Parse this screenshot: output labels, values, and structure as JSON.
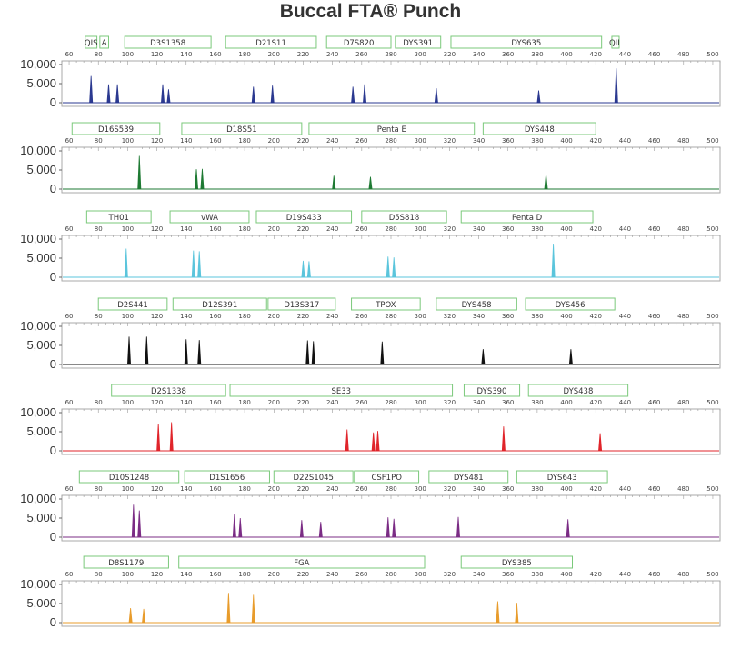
{
  "title": "Buccal FTA® Punch",
  "chart_data": [
    {
      "type": "line",
      "color": "#2b3990",
      "markers": [
        {
          "name": "QIS",
          "start": 71,
          "end": 79
        },
        {
          "name": "A",
          "start": 81,
          "end": 87
        },
        {
          "name": "D3S1358",
          "start": 98,
          "end": 157
        },
        {
          "name": "D21S11",
          "start": 167,
          "end": 229
        },
        {
          "name": "D7S820",
          "start": 236,
          "end": 280
        },
        {
          "name": "DYS391",
          "start": 283,
          "end": 314
        },
        {
          "name": "DYS635",
          "start": 321,
          "end": 424
        },
        {
          "name": "QIL",
          "start": 431,
          "end": 436
        }
      ],
      "ylim": [
        0,
        10000
      ],
      "yticks": [
        "10,000",
        "5,000",
        "0"
      ],
      "peaks": [
        {
          "x": 75,
          "y": 7000
        },
        {
          "x": 87,
          "y": 4800
        },
        {
          "x": 93,
          "y": 4800
        },
        {
          "x": 124,
          "y": 4800
        },
        {
          "x": 128,
          "y": 3500
        },
        {
          "x": 186,
          "y": 4200
        },
        {
          "x": 199,
          "y": 4500
        },
        {
          "x": 254,
          "y": 4200
        },
        {
          "x": 262,
          "y": 4800
        },
        {
          "x": 311,
          "y": 3800
        },
        {
          "x": 381,
          "y": 3200
        },
        {
          "x": 434,
          "y": 9000
        }
      ]
    },
    {
      "type": "line",
      "color": "#1e7a33",
      "markers": [
        {
          "name": "D16S539",
          "start": 62,
          "end": 122
        },
        {
          "name": "D18S51",
          "start": 137,
          "end": 219
        },
        {
          "name": "Penta E",
          "start": 224,
          "end": 337
        },
        {
          "name": "DYS448",
          "start": 343,
          "end": 420
        }
      ],
      "ylim": [
        0,
        10000
      ],
      "yticks": [
        "10,000",
        "5,000",
        "0"
      ],
      "peaks": [
        {
          "x": 108,
          "y": 8700
        },
        {
          "x": 147,
          "y": 5200
        },
        {
          "x": 151,
          "y": 5300
        },
        {
          "x": 241,
          "y": 3500
        },
        {
          "x": 266,
          "y": 3200
        },
        {
          "x": 386,
          "y": 3800
        }
      ]
    },
    {
      "type": "line",
      "color": "#5bc5dc",
      "markers": [
        {
          "name": "TH01",
          "start": 72,
          "end": 116
        },
        {
          "name": "vWA",
          "start": 129,
          "end": 183
        },
        {
          "name": "D19S433",
          "start": 188,
          "end": 253
        },
        {
          "name": "D5S818",
          "start": 260,
          "end": 318
        },
        {
          "name": "Penta D",
          "start": 328,
          "end": 418
        }
      ],
      "ylim": [
        0,
        10000
      ],
      "yticks": [
        "10,000",
        "5,000",
        "0"
      ],
      "peaks": [
        {
          "x": 99,
          "y": 7500
        },
        {
          "x": 145,
          "y": 7000
        },
        {
          "x": 149,
          "y": 6800
        },
        {
          "x": 220,
          "y": 4300
        },
        {
          "x": 224,
          "y": 4200
        },
        {
          "x": 278,
          "y": 5400
        },
        {
          "x": 282,
          "y": 5200
        },
        {
          "x": 391,
          "y": 8800
        }
      ]
    },
    {
      "type": "line",
      "color": "#111111",
      "markers": [
        {
          "name": "D2S441",
          "start": 80,
          "end": 127
        },
        {
          "name": "D12S391",
          "start": 131,
          "end": 195
        },
        {
          "name": "D13S317",
          "start": 196,
          "end": 242
        },
        {
          "name": "TPOX",
          "start": 253,
          "end": 300
        },
        {
          "name": "DYS458",
          "start": 311,
          "end": 366
        },
        {
          "name": "DYS456",
          "start": 372,
          "end": 433
        }
      ],
      "ylim": [
        0,
        10000
      ],
      "yticks": [
        "10,000",
        "5,000",
        "0"
      ],
      "peaks": [
        {
          "x": 101,
          "y": 7300
        },
        {
          "x": 113,
          "y": 7300
        },
        {
          "x": 140,
          "y": 6600
        },
        {
          "x": 149,
          "y": 6400
        },
        {
          "x": 223,
          "y": 6300
        },
        {
          "x": 227,
          "y": 6100
        },
        {
          "x": 274,
          "y": 6000
        },
        {
          "x": 343,
          "y": 4000
        },
        {
          "x": 403,
          "y": 4000
        }
      ]
    },
    {
      "type": "line",
      "color": "#e0252b",
      "markers": [
        {
          "name": "D2S1338",
          "start": 89,
          "end": 167
        },
        {
          "name": "SE33",
          "start": 170,
          "end": 322
        },
        {
          "name": "DYS390",
          "start": 330,
          "end": 368
        },
        {
          "name": "DYS438",
          "start": 374,
          "end": 442
        }
      ],
      "ylim": [
        0,
        10000
      ],
      "yticks": [
        "10,000",
        "5,000",
        "0"
      ],
      "peaks": [
        {
          "x": 121,
          "y": 7100
        },
        {
          "x": 130,
          "y": 7500
        },
        {
          "x": 250,
          "y": 5600
        },
        {
          "x": 268,
          "y": 4800
        },
        {
          "x": 271,
          "y": 5200
        },
        {
          "x": 357,
          "y": 6400
        },
        {
          "x": 423,
          "y": 4600
        }
      ]
    },
    {
      "type": "line",
      "color": "#7b2c85",
      "markers": [
        {
          "name": "D10S1248",
          "start": 67,
          "end": 135
        },
        {
          "name": "D1S1656",
          "start": 139,
          "end": 197
        },
        {
          "name": "D22S1045",
          "start": 200,
          "end": 254
        },
        {
          "name": "CSF1PO",
          "start": 255,
          "end": 299
        },
        {
          "name": "DYS481",
          "start": 306,
          "end": 360
        },
        {
          "name": "DYS643",
          "start": 366,
          "end": 428
        }
      ],
      "ylim": [
        0,
        10000
      ],
      "yticks": [
        "10,000",
        "5,000",
        "0"
      ],
      "peaks": [
        {
          "x": 104,
          "y": 8500
        },
        {
          "x": 108,
          "y": 7000
        },
        {
          "x": 173,
          "y": 6000
        },
        {
          "x": 177,
          "y": 5000
        },
        {
          "x": 219,
          "y": 4500
        },
        {
          "x": 232,
          "y": 4000
        },
        {
          "x": 278,
          "y": 5200
        },
        {
          "x": 282,
          "y": 4800
        },
        {
          "x": 326,
          "y": 5300
        },
        {
          "x": 401,
          "y": 4700
        }
      ]
    },
    {
      "type": "line",
      "color": "#e89c2c",
      "markers": [
        {
          "name": "D8S1179",
          "start": 70,
          "end": 128
        },
        {
          "name": "FGA",
          "start": 135,
          "end": 303
        },
        {
          "name": "DYS385",
          "start": 328,
          "end": 404
        }
      ],
      "ylim": [
        0,
        10000
      ],
      "yticks": [
        "10,000",
        "5,000",
        "0"
      ],
      "peaks": [
        {
          "x": 102,
          "y": 3800
        },
        {
          "x": 111,
          "y": 3600
        },
        {
          "x": 169,
          "y": 7800
        },
        {
          "x": 186,
          "y": 7300
        },
        {
          "x": 353,
          "y": 5600
        },
        {
          "x": 366,
          "y": 5200
        }
      ]
    }
  ],
  "x_ticks": [
    60,
    80,
    100,
    120,
    140,
    160,
    180,
    200,
    220,
    240,
    260,
    280,
    300,
    320,
    340,
    360,
    380,
    400,
    420,
    440,
    460,
    480,
    500
  ],
  "x_range": [
    55,
    505
  ]
}
